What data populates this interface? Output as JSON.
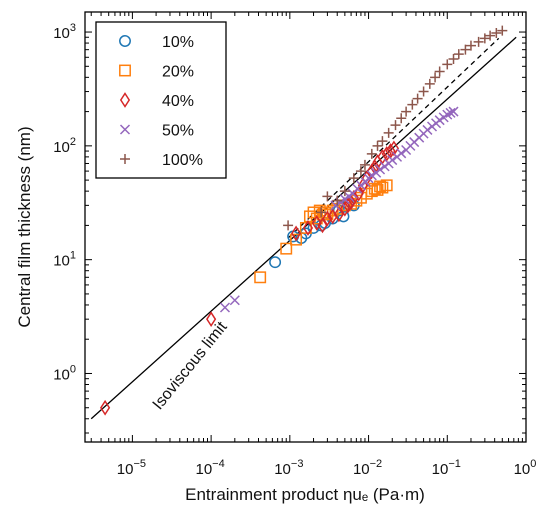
{
  "chart_data": {
    "type": "scatter",
    "xlabel": "Entrainment product ηuₑ (Pa·m)",
    "ylabel": "Central film thickness (nm)",
    "xscale": "log",
    "yscale": "log",
    "xlim": [
      2.5e-06,
      1.0
    ],
    "ylim": [
      0.25,
      1500
    ],
    "grid": false,
    "legend_position": "top-left",
    "x_ticks": [
      {
        "value": 1e-05,
        "base": "10",
        "exp": "−5"
      },
      {
        "value": 0.0001,
        "base": "10",
        "exp": "−4"
      },
      {
        "value": 0.001,
        "base": "10",
        "exp": "−3"
      },
      {
        "value": 0.01,
        "base": "10",
        "exp": "−2"
      },
      {
        "value": 0.1,
        "base": "10",
        "exp": "−1"
      },
      {
        "value": 1,
        "base": "10",
        "exp": "0"
      }
    ],
    "y_ticks": [
      {
        "value": 1,
        "base": "10",
        "exp": "0"
      },
      {
        "value": 10,
        "base": "10",
        "exp": "1"
      },
      {
        "value": 100,
        "base": "10",
        "exp": "2"
      },
      {
        "value": 1000,
        "base": "10",
        "exp": "3"
      }
    ],
    "series": [
      {
        "name": "10%",
        "marker": "circle",
        "color": "#1f77b4",
        "points": [
          [
            0.00065,
            9.5
          ],
          [
            0.0011,
            16
          ],
          [
            0.0014,
            15.5
          ],
          [
            0.0016,
            17
          ],
          [
            0.002,
            19
          ],
          [
            0.0025,
            20
          ],
          [
            0.0028,
            21
          ],
          [
            0.0035,
            23
          ],
          [
            0.0042,
            27
          ],
          [
            0.0048,
            24
          ],
          [
            0.0055,
            31
          ],
          [
            0.0065,
            30
          ]
        ]
      },
      {
        "name": "20%",
        "marker": "square",
        "color": "#ff7f0e",
        "points": [
          [
            0.00042,
            7
          ],
          [
            0.0009,
            12.5
          ],
          [
            0.0012,
            15
          ],
          [
            0.0016,
            19
          ],
          [
            0.0018,
            24
          ],
          [
            0.002,
            26
          ],
          [
            0.0022,
            23
          ],
          [
            0.0024,
            27
          ],
          [
            0.0026,
            25
          ],
          [
            0.0028,
            26
          ],
          [
            0.003,
            25
          ],
          [
            0.0035,
            27
          ],
          [
            0.004,
            28
          ],
          [
            0.005,
            30
          ],
          [
            0.006,
            31
          ],
          [
            0.007,
            33
          ],
          [
            0.008,
            35
          ],
          [
            0.0095,
            38
          ],
          [
            0.011,
            40
          ],
          [
            0.012,
            42
          ],
          [
            0.013,
            41
          ],
          [
            0.014,
            44
          ],
          [
            0.015,
            43
          ],
          [
            0.017,
            45
          ]
        ]
      },
      {
        "name": "40%",
        "marker": "diamond",
        "color": "#d62728",
        "points": [
          [
            4.5e-06,
            0.5
          ],
          [
            0.0001,
            3
          ],
          [
            0.0012,
            17
          ],
          [
            0.0017,
            19
          ],
          [
            0.0022,
            21
          ],
          [
            0.0026,
            20
          ],
          [
            0.003,
            23
          ],
          [
            0.0035,
            24
          ],
          [
            0.0042,
            25
          ],
          [
            0.005,
            28
          ],
          [
            0.0055,
            30
          ],
          [
            0.006,
            32
          ],
          [
            0.0065,
            35
          ],
          [
            0.0075,
            38
          ],
          [
            0.0085,
            45
          ],
          [
            0.0095,
            52
          ],
          [
            0.011,
            60
          ],
          [
            0.012,
            65
          ],
          [
            0.013,
            72
          ],
          [
            0.015,
            80
          ],
          [
            0.017,
            85
          ],
          [
            0.019,
            90
          ],
          [
            0.021,
            95
          ]
        ]
      },
      {
        "name": "50%",
        "marker": "x",
        "color": "#9467bd",
        "points": [
          [
            0.00015,
            3.8
          ],
          [
            0.0002,
            4.4
          ],
          [
            0.0038,
            30
          ],
          [
            0.0044,
            32
          ],
          [
            0.005,
            34
          ],
          [
            0.0056,
            36
          ],
          [
            0.0063,
            38
          ],
          [
            0.0072,
            42
          ],
          [
            0.008,
            45
          ],
          [
            0.0092,
            48
          ],
          [
            0.01,
            52
          ],
          [
            0.011,
            55
          ],
          [
            0.0125,
            58
          ],
          [
            0.014,
            62
          ],
          [
            0.016,
            66
          ],
          [
            0.018,
            70
          ],
          [
            0.02,
            75
          ],
          [
            0.023,
            80
          ],
          [
            0.026,
            86
          ],
          [
            0.03,
            92
          ],
          [
            0.034,
            100
          ],
          [
            0.038,
            108
          ],
          [
            0.044,
            118
          ],
          [
            0.05,
            128
          ],
          [
            0.056,
            138
          ],
          [
            0.064,
            148
          ],
          [
            0.072,
            158
          ],
          [
            0.08,
            168
          ],
          [
            0.09,
            178
          ],
          [
            0.1,
            188
          ],
          [
            0.11,
            195
          ],
          [
            0.12,
            200
          ]
        ]
      },
      {
        "name": "100%",
        "marker": "plus",
        "color": "#8c564b",
        "points": [
          [
            0.00095,
            20
          ],
          [
            0.0025,
            26
          ],
          [
            0.003,
            36
          ],
          [
            0.004,
            33
          ],
          [
            0.005,
            40
          ],
          [
            0.0065,
            52
          ],
          [
            0.008,
            60
          ],
          [
            0.009,
            68
          ],
          [
            0.011,
            85
          ],
          [
            0.013,
            100
          ],
          [
            0.015,
            110
          ],
          [
            0.018,
            130
          ],
          [
            0.022,
            152
          ],
          [
            0.026,
            175
          ],
          [
            0.03,
            200
          ],
          [
            0.036,
            230
          ],
          [
            0.042,
            260
          ],
          [
            0.05,
            300
          ],
          [
            0.06,
            350
          ],
          [
            0.07,
            400
          ],
          [
            0.08,
            450
          ],
          [
            0.1,
            520
          ],
          [
            0.12,
            580
          ],
          [
            0.14,
            640
          ],
          [
            0.17,
            700
          ],
          [
            0.2,
            760
          ],
          [
            0.25,
            820
          ],
          [
            0.3,
            880
          ],
          [
            0.35,
            930
          ],
          [
            0.42,
            980
          ],
          [
            0.5,
            1030
          ]
        ]
      }
    ],
    "lines": [
      {
        "style": "solid",
        "points": [
          [
            3e-06,
            0.4
          ],
          [
            0.75,
            900
          ]
        ]
      },
      {
        "style": "dashed",
        "points": [
          [
            0.00095,
            15.5
          ],
          [
            0.45,
            880
          ]
        ]
      }
    ],
    "annotations": [
      {
        "text": "Isoviscous limit",
        "at": [
          6e-05,
          1.1
        ],
        "rotate": -51
      }
    ]
  }
}
